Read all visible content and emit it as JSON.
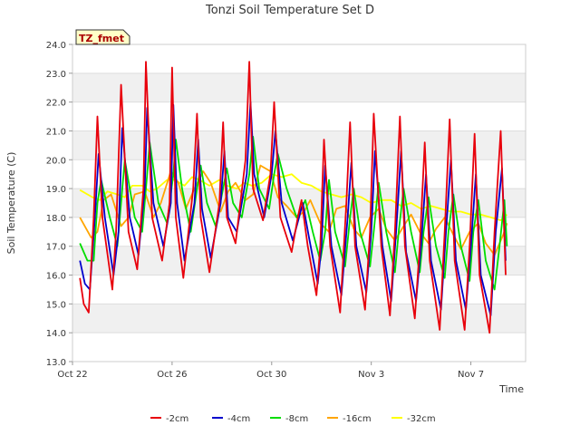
{
  "chart_data": {
    "type": "line",
    "title": "Tonzi Soil Temperature Set D",
    "xlabel": "Time",
    "ylabel": "Soil Temperature (C)",
    "annotation": "TZ_fmet",
    "ylim": [
      13.0,
      24.0
    ],
    "yticks": [
      "13.0",
      "14.0",
      "15.0",
      "16.0",
      "17.0",
      "18.0",
      "19.0",
      "20.0",
      "21.0",
      "22.0",
      "23.0",
      "24.0"
    ],
    "xlim_days": [
      0,
      18.2
    ],
    "xticks": [
      {
        "day": 0,
        "label": "Oct 22"
      },
      {
        "day": 4,
        "label": "Oct 26"
      },
      {
        "day": 8,
        "label": "Oct 30"
      },
      {
        "day": 12,
        "label": "Nov 3"
      },
      {
        "day": 16,
        "label": "Nov 7"
      }
    ],
    "series": [
      {
        "name": "-2cm",
        "color": "#e8000b",
        "x": [
          0.3,
          0.45,
          0.65,
          0.85,
          1.0,
          1.2,
          1.6,
          1.75,
          1.95,
          2.25,
          2.6,
          2.85,
          2.95,
          3.2,
          3.6,
          3.9,
          4.0,
          4.15,
          4.45,
          4.85,
          5.0,
          5.15,
          5.5,
          5.9,
          6.05,
          6.2,
          6.55,
          6.95,
          7.1,
          7.25,
          7.65,
          7.95,
          8.1,
          8.35,
          8.8,
          9.05,
          9.2,
          9.45,
          9.8,
          9.95,
          10.1,
          10.35,
          10.75,
          11.0,
          11.15,
          11.35,
          11.75,
          11.95,
          12.1,
          12.4,
          12.75,
          12.95,
          13.15,
          13.35,
          13.75,
          13.95,
          14.15,
          14.35,
          14.75,
          14.95,
          15.15,
          15.35,
          15.75,
          15.95,
          16.15,
          16.35,
          16.75,
          16.95,
          17.2,
          17.4
        ],
        "y": [
          15.9,
          15.0,
          14.7,
          18.0,
          21.5,
          18.0,
          15.5,
          17.5,
          22.6,
          17.5,
          16.2,
          19.0,
          23.4,
          18.0,
          16.5,
          18.5,
          23.2,
          18.0,
          15.9,
          19.0,
          21.6,
          18.0,
          16.1,
          18.5,
          21.3,
          18.0,
          17.1,
          20.0,
          23.4,
          19.0,
          17.9,
          19.5,
          22.0,
          18.0,
          16.8,
          18.0,
          18.6,
          17.0,
          15.3,
          17.0,
          20.7,
          17.0,
          14.7,
          18.5,
          21.3,
          17.0,
          14.8,
          17.5,
          21.6,
          17.0,
          14.6,
          17.5,
          21.5,
          17.0,
          14.5,
          17.0,
          20.6,
          16.5,
          14.1,
          17.5,
          21.4,
          16.5,
          14.1,
          17.0,
          20.9,
          16.0,
          14.0,
          17.5,
          21.0,
          16.0
        ]
      },
      {
        "name": "-4cm",
        "color": "#0000cc",
        "x": [
          0.3,
          0.5,
          0.7,
          0.9,
          1.05,
          1.3,
          1.65,
          1.85,
          2.0,
          2.3,
          2.65,
          2.9,
          3.0,
          3.25,
          3.65,
          3.95,
          4.05,
          4.2,
          4.5,
          4.9,
          5.05,
          5.2,
          5.55,
          5.95,
          6.1,
          6.25,
          6.6,
          7.0,
          7.15,
          7.3,
          7.7,
          8.0,
          8.15,
          8.4,
          8.85,
          9.1,
          9.25,
          9.5,
          9.85,
          10.0,
          10.15,
          10.4,
          10.8,
          11.05,
          11.2,
          11.4,
          11.8,
          12.0,
          12.15,
          12.45,
          12.8,
          13.0,
          13.2,
          13.4,
          13.8,
          14.0,
          14.2,
          14.4,
          14.8,
          15.0,
          15.2,
          15.4,
          15.8,
          16.0,
          16.2,
          16.4,
          16.8,
          17.0,
          17.25,
          17.4
        ],
        "y": [
          16.5,
          15.7,
          15.5,
          18.0,
          20.2,
          18.0,
          16.0,
          17.5,
          21.1,
          18.0,
          16.7,
          19.0,
          21.8,
          18.5,
          17.0,
          18.5,
          21.9,
          18.5,
          16.5,
          18.5,
          20.7,
          18.3,
          16.6,
          18.5,
          20.3,
          18.0,
          17.5,
          19.5,
          22.0,
          19.5,
          18.0,
          19.5,
          21.0,
          18.5,
          17.2,
          18.0,
          18.5,
          17.3,
          15.7,
          17.0,
          19.8,
          17.0,
          15.3,
          18.0,
          19.9,
          17.0,
          15.4,
          17.5,
          20.3,
          17.0,
          15.1,
          17.5,
          20.3,
          16.8,
          15.1,
          17.0,
          19.5,
          16.5,
          14.8,
          17.5,
          20.0,
          16.5,
          14.8,
          17.0,
          19.5,
          16.0,
          14.6,
          17.5,
          19.7,
          16.5
        ]
      },
      {
        "name": "-8cm",
        "color": "#00dd00",
        "x": [
          0.3,
          0.6,
          0.85,
          1.0,
          1.15,
          1.5,
          1.8,
          1.95,
          2.1,
          2.5,
          2.8,
          3.0,
          3.1,
          3.45,
          3.8,
          4.05,
          4.15,
          4.4,
          4.75,
          5.0,
          5.15,
          5.4,
          5.75,
          6.05,
          6.2,
          6.45,
          6.8,
          7.1,
          7.25,
          7.5,
          7.9,
          8.1,
          8.25,
          8.6,
          9.0,
          9.2,
          9.35,
          9.65,
          9.95,
          10.15,
          10.3,
          10.55,
          10.95,
          11.15,
          11.3,
          11.55,
          11.95,
          12.1,
          12.3,
          12.6,
          12.95,
          13.1,
          13.3,
          13.6,
          13.95,
          14.1,
          14.3,
          14.6,
          14.95,
          15.1,
          15.3,
          15.6,
          15.95,
          16.1,
          16.3,
          16.6,
          16.95,
          17.15,
          17.35,
          17.45
        ],
        "y": [
          17.1,
          16.5,
          16.5,
          18.5,
          19.3,
          18.0,
          17.0,
          18.5,
          20.0,
          18.0,
          17.5,
          19.5,
          20.6,
          18.5,
          17.8,
          19.5,
          20.7,
          19.0,
          17.5,
          19.0,
          19.8,
          18.5,
          17.7,
          19.0,
          19.7,
          18.5,
          18.0,
          19.5,
          20.8,
          19.0,
          18.3,
          19.5,
          20.2,
          19.0,
          18.0,
          18.3,
          18.6,
          17.5,
          16.5,
          17.5,
          19.3,
          17.5,
          16.3,
          18.0,
          19.0,
          17.5,
          16.3,
          17.5,
          19.2,
          17.5,
          16.1,
          17.5,
          19.0,
          17.5,
          16.1,
          17.5,
          18.7,
          17.0,
          15.9,
          17.5,
          18.8,
          17.0,
          15.8,
          17.5,
          18.6,
          16.5,
          15.5,
          17.0,
          18.6,
          17.0
        ]
      },
      {
        "name": "-16cm",
        "color": "#ffa500",
        "x": [
          0.3,
          0.75,
          1.0,
          1.25,
          1.55,
          1.95,
          2.25,
          2.5,
          2.9,
          3.25,
          3.55,
          3.95,
          4.25,
          4.55,
          4.9,
          5.25,
          5.55,
          5.95,
          6.25,
          6.55,
          6.95,
          7.25,
          7.55,
          7.95,
          8.25,
          8.6,
          9.0,
          9.3,
          9.55,
          9.95,
          10.3,
          10.6,
          10.95,
          11.3,
          11.6,
          11.95,
          12.3,
          12.6,
          12.95,
          13.3,
          13.6,
          13.95,
          14.3,
          14.6,
          14.95,
          15.3,
          15.6,
          15.95,
          16.3,
          16.6,
          16.95,
          17.3,
          17.45
        ],
        "y": [
          18.0,
          17.3,
          17.5,
          18.6,
          18.8,
          17.7,
          18.0,
          18.8,
          18.9,
          18.0,
          18.5,
          19.6,
          19.2,
          18.3,
          19.0,
          19.6,
          19.2,
          18.2,
          18.9,
          19.2,
          18.6,
          18.8,
          19.8,
          19.6,
          18.7,
          18.4,
          18.0,
          18.2,
          18.6,
          17.8,
          17.5,
          18.3,
          18.4,
          17.6,
          17.3,
          18.0,
          18.3,
          17.6,
          17.2,
          17.7,
          18.1,
          17.5,
          17.1,
          17.6,
          18.0,
          17.4,
          16.9,
          17.5,
          17.8,
          17.1,
          16.7,
          17.4,
          17.8
        ]
      },
      {
        "name": "-32cm",
        "color": "#ffff00",
        "x": [
          0.3,
          0.8,
          1.1,
          1.4,
          1.8,
          2.1,
          2.4,
          2.8,
          3.1,
          3.4,
          3.8,
          4.1,
          4.5,
          4.8,
          5.1,
          5.5,
          5.9,
          6.2,
          6.6,
          6.9,
          7.2,
          7.6,
          8.0,
          8.4,
          8.8,
          9.2,
          9.6,
          10.0,
          10.4,
          10.8,
          11.2,
          11.6,
          12.0,
          12.4,
          12.8,
          13.2,
          13.6,
          14.0,
          14.4,
          14.8,
          15.2,
          15.6,
          16.0,
          16.4,
          16.8,
          17.2,
          17.45
        ],
        "y": [
          18.95,
          18.7,
          18.6,
          18.9,
          18.8,
          18.7,
          19.1,
          19.1,
          18.9,
          19.0,
          19.3,
          19.3,
          19.1,
          19.4,
          19.3,
          19.1,
          19.3,
          19.1,
          19.0,
          19.2,
          19.1,
          19.2,
          19.5,
          19.4,
          19.5,
          19.2,
          19.1,
          18.9,
          18.8,
          18.7,
          18.8,
          18.7,
          18.5,
          18.6,
          18.6,
          18.4,
          18.5,
          18.3,
          18.4,
          18.3,
          18.2,
          18.2,
          18.1,
          18.1,
          18.0,
          17.9,
          18.1
        ]
      }
    ]
  }
}
